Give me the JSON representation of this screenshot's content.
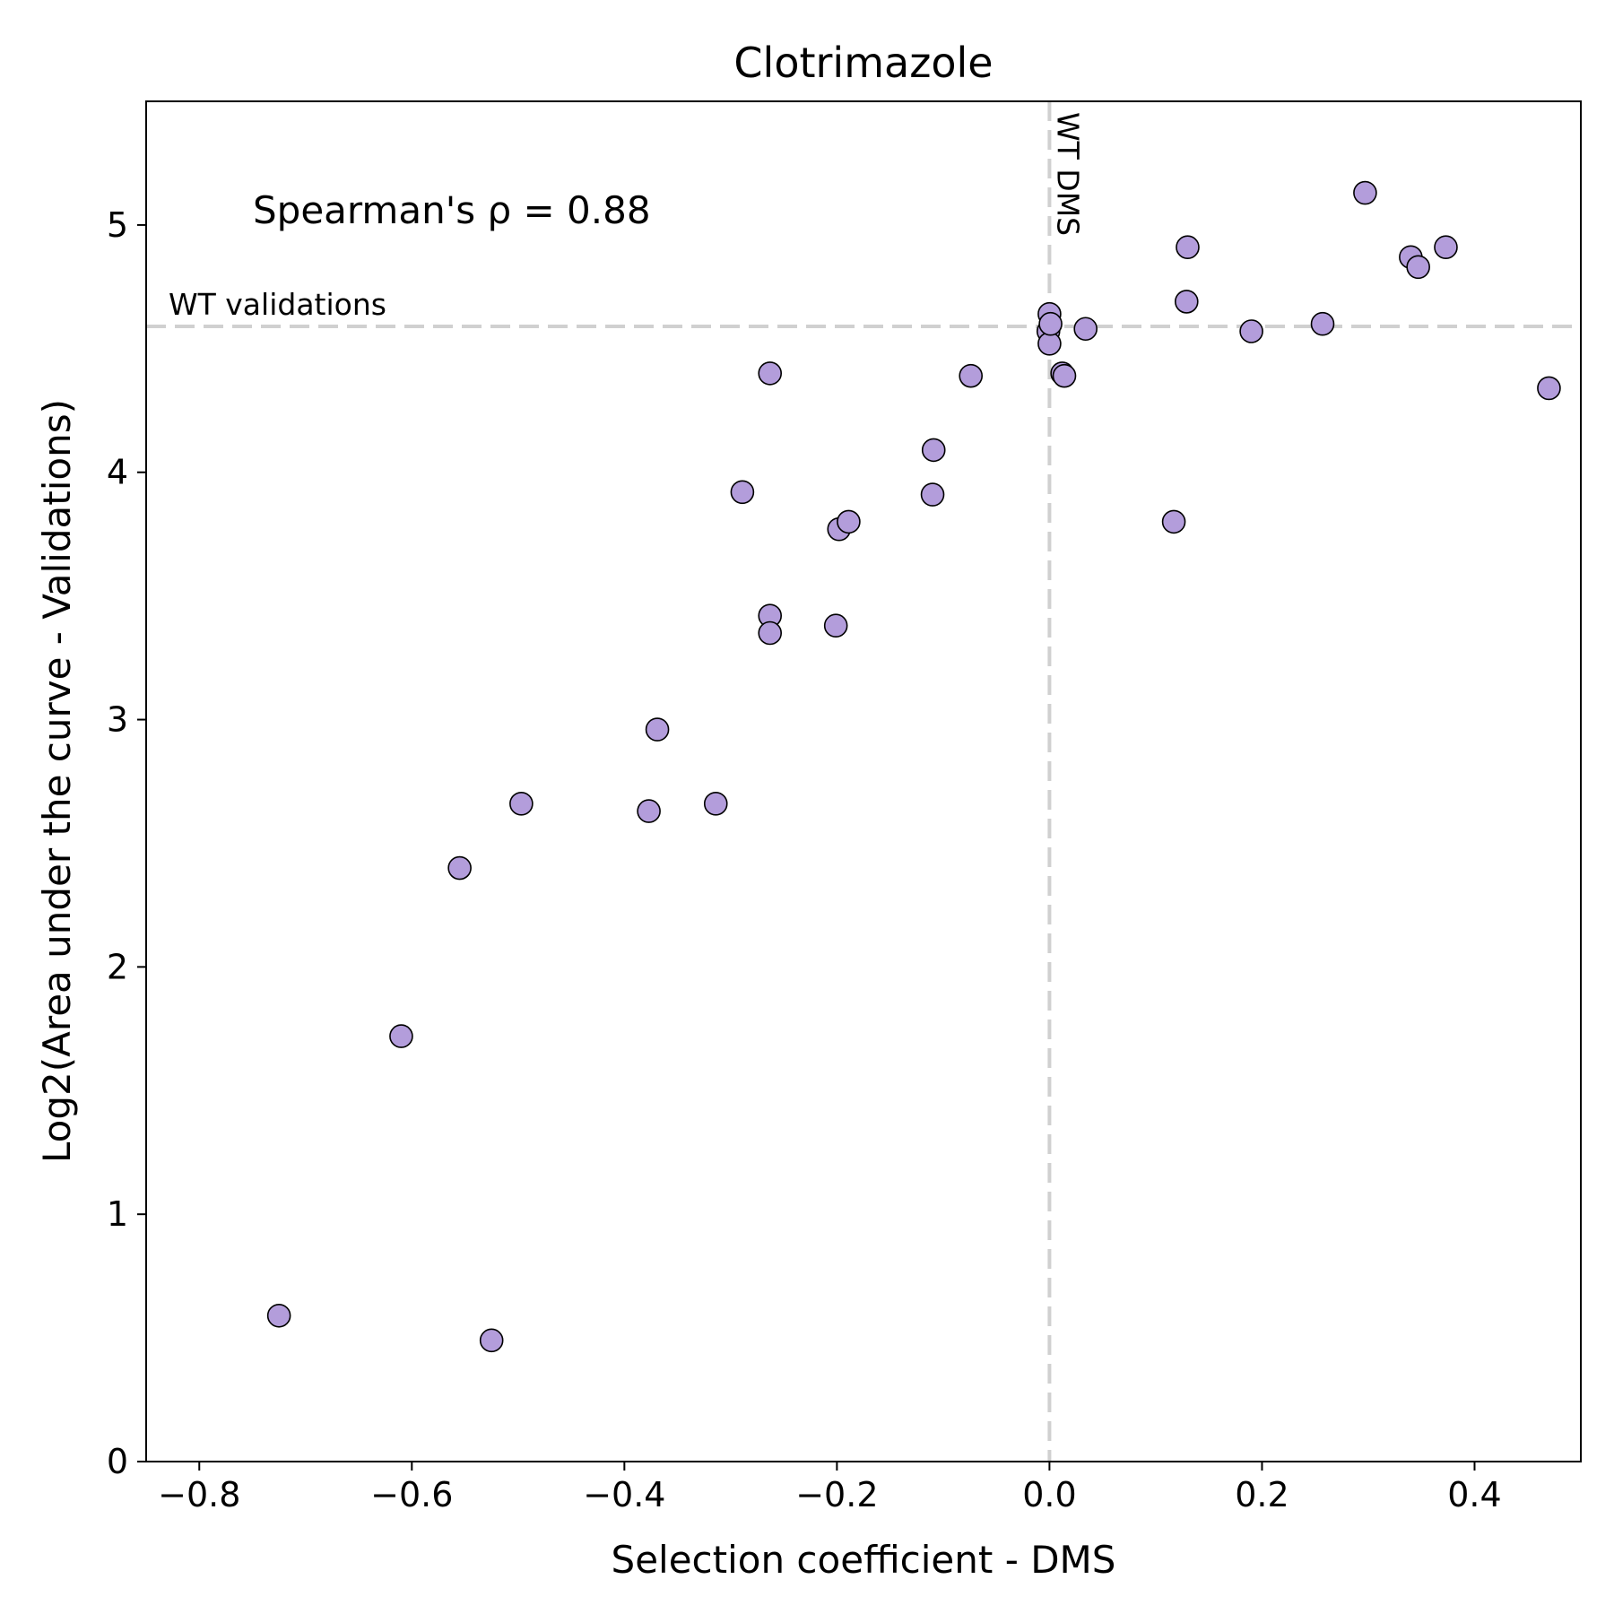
{
  "chart_data": {
    "type": "scatter",
    "title": "Clotrimazole",
    "xlabel": "Selection coefficient - DMS",
    "ylabel": "Log2(Area under the curve - Validations)",
    "xlim": [
      -0.85,
      0.5
    ],
    "ylim": [
      0,
      5.5
    ],
    "xticks": [
      -0.8,
      -0.6,
      -0.4,
      -0.2,
      0.0,
      0.2,
      0.4
    ],
    "xtick_labels": [
      "−0.8",
      "−0.6",
      "−0.4",
      "−0.2",
      "0.0",
      "0.2",
      "0.4"
    ],
    "yticks": [
      0,
      1,
      2,
      3,
      4,
      5
    ],
    "ytick_labels": [
      "0",
      "1",
      "2",
      "3",
      "4",
      "5"
    ],
    "grid": false,
    "annotation": "Spearman's ρ = 0.88",
    "reference_lines": {
      "horizontal": {
        "value": 4.59,
        "label": "WT validations",
        "color": "#d0d0d0",
        "style": "dashed"
      },
      "vertical": {
        "value": 0.0,
        "label": "WT DMS",
        "color": "#d0d0d0",
        "style": "dashed"
      }
    },
    "marker_color": "#b39ddb",
    "marker_edge": "#000000",
    "points": [
      {
        "x": -0.725,
        "y": 0.59
      },
      {
        "x": -0.525,
        "y": 0.49
      },
      {
        "x": -0.61,
        "y": 1.72
      },
      {
        "x": -0.555,
        "y": 2.4
      },
      {
        "x": -0.497,
        "y": 2.66
      },
      {
        "x": -0.377,
        "y": 2.63
      },
      {
        "x": -0.369,
        "y": 2.96
      },
      {
        "x": -0.314,
        "y": 2.66
      },
      {
        "x": -0.289,
        "y": 3.92
      },
      {
        "x": -0.263,
        "y": 4.4
      },
      {
        "x": -0.263,
        "y": 3.42
      },
      {
        "x": -0.263,
        "y": 3.35
      },
      {
        "x": -0.201,
        "y": 3.38
      },
      {
        "x": -0.198,
        "y": 3.77
      },
      {
        "x": -0.189,
        "y": 3.8
      },
      {
        "x": -0.109,
        "y": 4.09
      },
      {
        "x": -0.11,
        "y": 3.91
      },
      {
        "x": -0.074,
        "y": 4.39
      },
      {
        "x": 0.0,
        "y": 4.64
      },
      {
        "x": -0.001,
        "y": 4.57
      },
      {
        "x": 0.0,
        "y": 4.52
      },
      {
        "x": 0.001,
        "y": 4.6
      },
      {
        "x": 0.012,
        "y": 4.4
      },
      {
        "x": 0.014,
        "y": 4.39
      },
      {
        "x": 0.034,
        "y": 4.58
      },
      {
        "x": 0.117,
        "y": 3.8
      },
      {
        "x": 0.129,
        "y": 4.69
      },
      {
        "x": 0.13,
        "y": 4.91
      },
      {
        "x": 0.19,
        "y": 4.57
      },
      {
        "x": 0.257,
        "y": 4.6
      },
      {
        "x": 0.297,
        "y": 5.13
      },
      {
        "x": 0.34,
        "y": 4.87
      },
      {
        "x": 0.347,
        "y": 4.83
      },
      {
        "x": 0.373,
        "y": 4.91
      },
      {
        "x": 0.47,
        "y": 4.34
      }
    ]
  }
}
